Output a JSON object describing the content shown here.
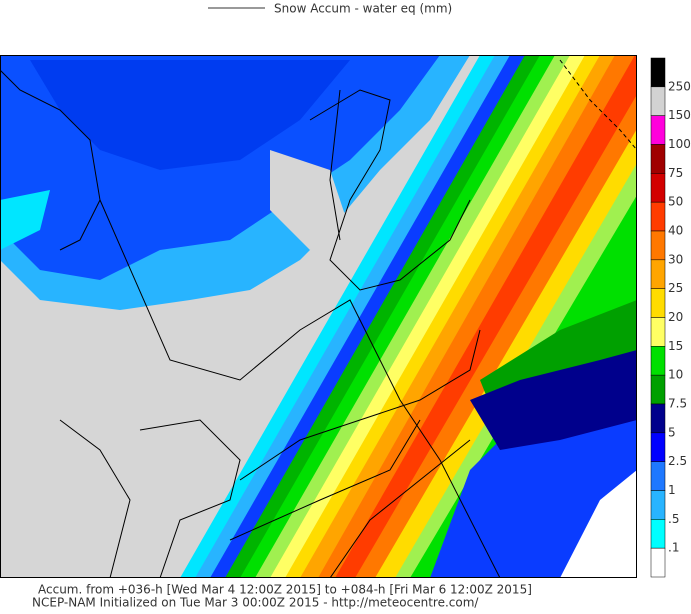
{
  "header": {
    "title": "Snow Accum - water eq (mm)"
  },
  "legend": {
    "labels": [
      "250",
      "150",
      "100",
      "75",
      "50",
      "40",
      "30",
      "25",
      "20",
      "15",
      "10",
      "7.5",
      "5",
      "2.5",
      "1",
      ".5",
      ".1"
    ],
    "colors": [
      "#000000",
      "#d2d2d2",
      "#ff00dc",
      "#a00000",
      "#d20000",
      "#ff3c00",
      "#ff7800",
      "#ffa500",
      "#ffdc00",
      "#ffff64",
      "#00e000",
      "#00a000",
      "#00008c",
      "#0000ff",
      "#1e78ff",
      "#28b4ff",
      "#00ffff",
      "#ffffff"
    ]
  },
  "footer": {
    "line1": "Accum. from +036-h [Wed Mar 4 12:00Z 2015] to +084-h [Fri Mar 6 12:00Z 2015]",
    "line2": "NCEP-NAM Initialized on Tue Mar 3 00:00Z 2015 - http://meteocentre.com/"
  }
}
